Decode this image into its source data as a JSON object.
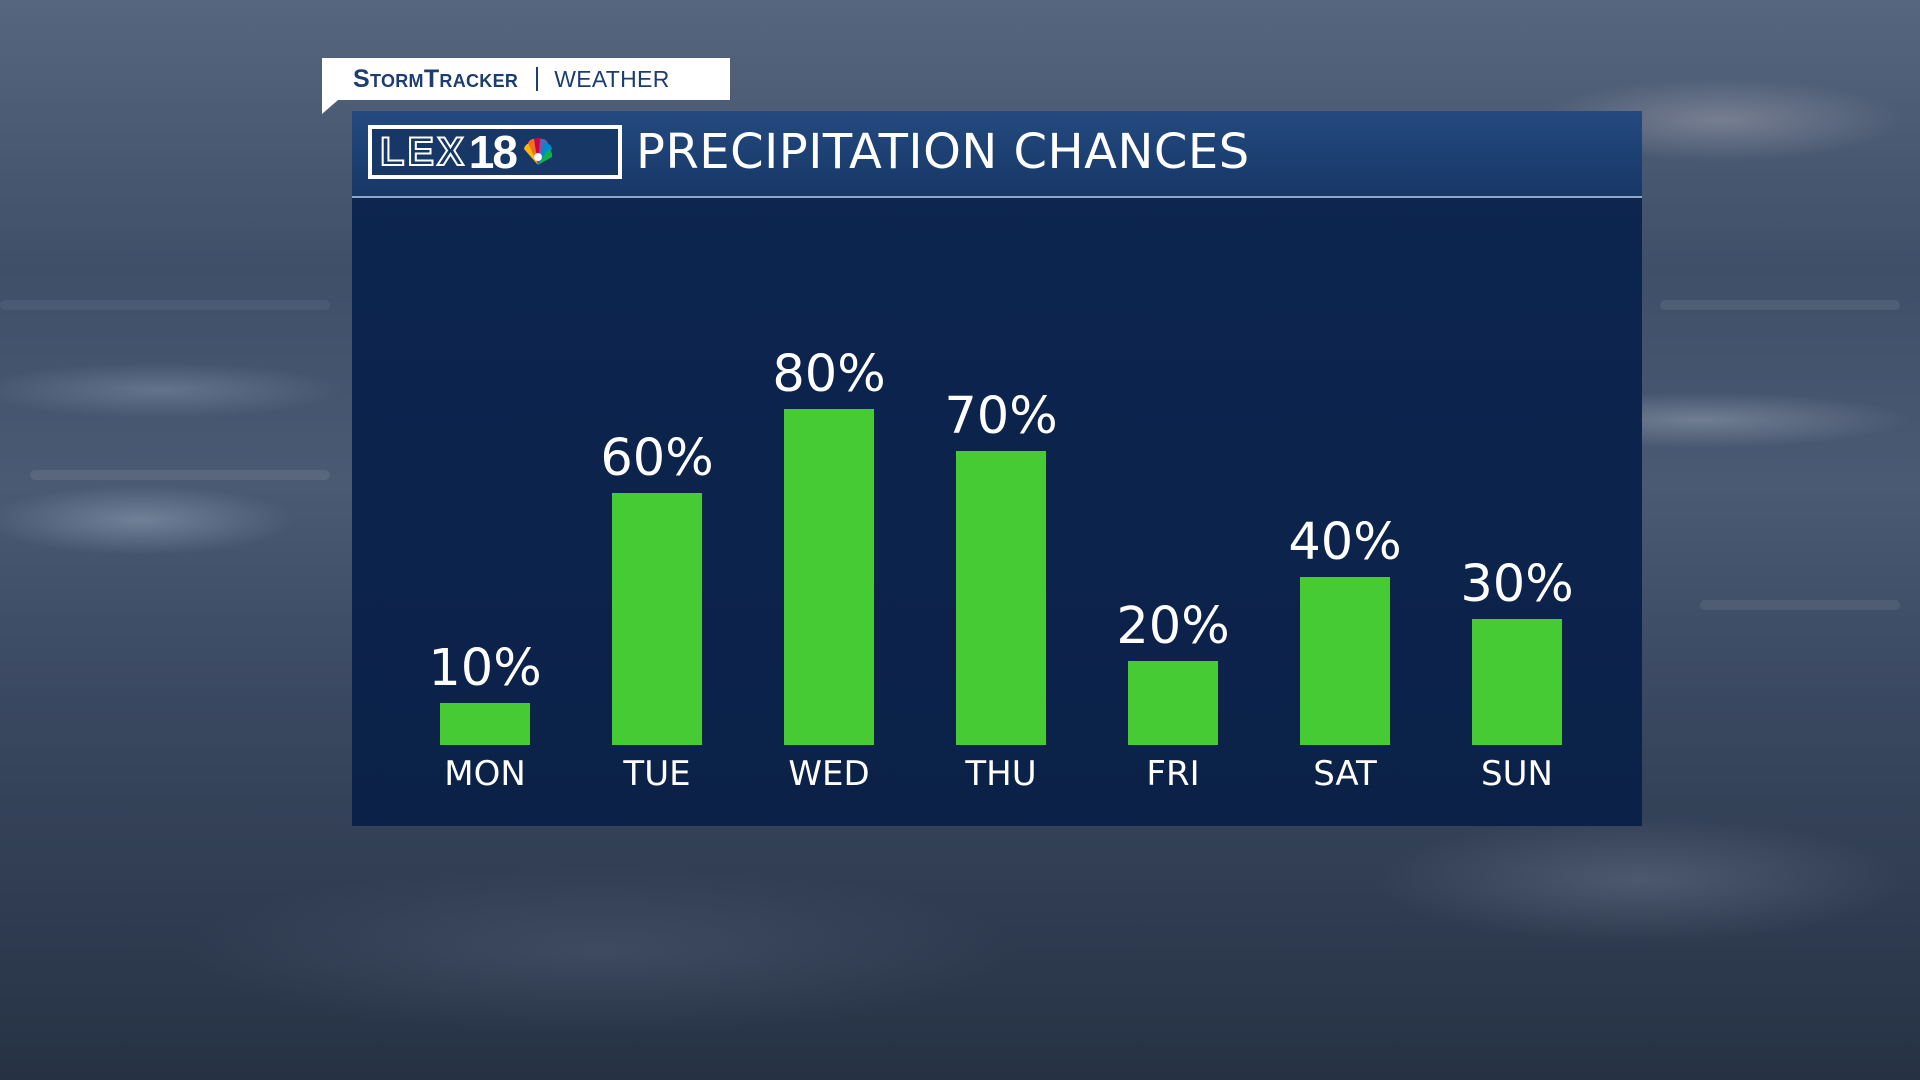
{
  "brand": {
    "show_name": "StormTracker",
    "section": "WEATHER"
  },
  "station": {
    "call_letters": "LEX",
    "channel": "18",
    "network_icon": "peacock-icon"
  },
  "colors": {
    "bar": "#47cb35",
    "panel": "#0d2650",
    "header": "#1c3f72",
    "text": "#ffffff"
  },
  "chart_data": {
    "type": "bar",
    "title": "PRECIPITATION CHANCES",
    "categories": [
      "MON",
      "TUE",
      "WED",
      "THU",
      "FRI",
      "SAT",
      "SUN"
    ],
    "values": [
      10,
      60,
      80,
      70,
      20,
      40,
      30
    ],
    "value_labels": [
      "10%",
      "60%",
      "80%",
      "70%",
      "20%",
      "40%",
      "30%"
    ],
    "unit": "%",
    "ylim": [
      0,
      100
    ],
    "grid": false,
    "legend": "none"
  }
}
